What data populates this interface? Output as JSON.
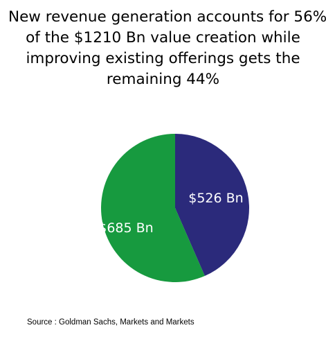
{
  "chart_data": {
    "type": "pie",
    "title_lines": [
      "New revenue generation accounts for 56%",
      "of the $1210 Bn value creation while",
      "improving existing offerings gets the",
      "remaining 44%"
    ],
    "slices": [
      {
        "value": 526,
        "label": "$526 Bn",
        "color": "#2b2a7b"
      },
      {
        "value": 685,
        "label": "$685 Bn",
        "color": "#179a3f"
      }
    ],
    "source": "Source : Goldman Sachs, Markets and Markets"
  }
}
